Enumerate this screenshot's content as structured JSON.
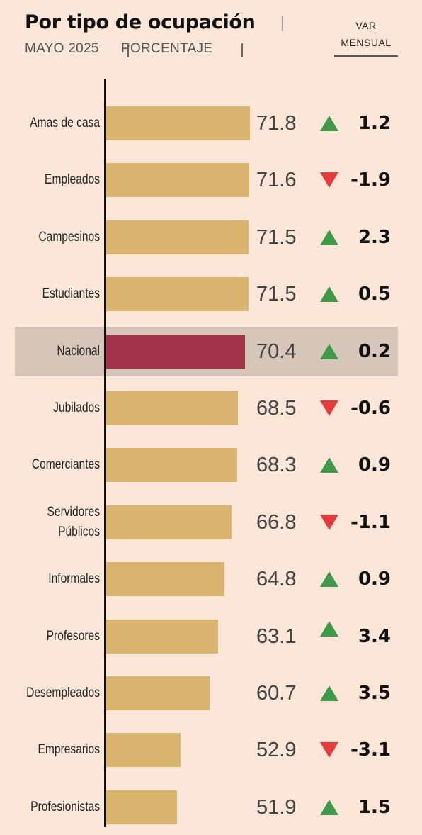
{
  "header": {
    "title": "Por tipo de ocupación",
    "subtitle_date": "MAYO 2025",
    "subtitle_unit": "PORCENTAJE",
    "var_line1": "VAR",
    "var_line2": "MENSUAL"
  },
  "colors": {
    "background": "#fbe6d8",
    "bar": "#d9b56f",
    "bar_highlight": "#a3334b",
    "highlight_band": "#d6c5b9",
    "up": "#3f9a4a",
    "down": "#e53b3b"
  },
  "chart_data": {
    "type": "bar",
    "orientation": "horizontal",
    "title": "Por tipo de ocupación",
    "subtitle": "MAYO 2025 | PORCENTAJE",
    "change_label": "VAR MENSUAL",
    "highlight_category": "Nacional",
    "xlim": [
      0,
      100
    ],
    "categories": [
      "Amas de casa",
      "Empleados",
      "Campesinos",
      "Estudiantes",
      "Nacional",
      "Jubilados",
      "Comerciantes",
      "Servidores Públicos",
      "Informales",
      "Profesores",
      "Desempleados",
      "Empresarios",
      "Profesionistas"
    ],
    "label_lines": [
      [
        "Amas de casa"
      ],
      [
        "Empleados"
      ],
      [
        "Campesinos"
      ],
      [
        "Estudiantes"
      ],
      [
        "Nacional"
      ],
      [
        "Jubilados"
      ],
      [
        "Comerciantes"
      ],
      [
        "Servidores",
        "Públicos"
      ],
      [
        "Informales"
      ],
      [
        "Profesores"
      ],
      [
        "Desempleados"
      ],
      [
        "Empresarios"
      ],
      [
        "Profesionistas"
      ]
    ],
    "values": [
      71.8,
      71.6,
      71.5,
      71.5,
      70.4,
      68.5,
      68.3,
      66.8,
      64.8,
      63.1,
      60.7,
      52.9,
      51.9
    ],
    "value_labels": [
      "71.8",
      "71.6",
      "71.5",
      "71.5",
      "70.4",
      "68.5",
      "68.3",
      "66.8",
      "64.8",
      "63.1",
      "60.7",
      "52.9",
      "51.9"
    ],
    "changes": [
      1.2,
      -1.9,
      2.3,
      0.5,
      0.2,
      -0.6,
      0.9,
      -1.1,
      0.9,
      3.4,
      3.5,
      -3.1,
      1.5
    ],
    "change_labels": [
      "1.2",
      "-1.9",
      "2.3",
      "0.5",
      "0.2",
      "-0.6",
      "0.9",
      "-1.1",
      "0.9",
      "3.4",
      "3.5",
      "-3.1",
      "1.5"
    ]
  }
}
